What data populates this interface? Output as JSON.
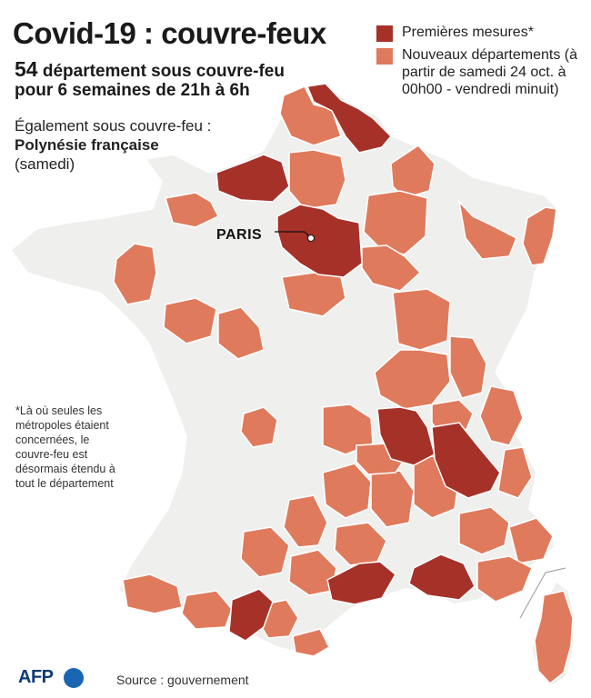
{
  "header": {
    "title": "Covid-19 : couvre-feux",
    "subtitle_number": "54",
    "subtitle_line1": " département sous couvre-feu",
    "subtitle_line2": "pour 6 semaines de 21h à 6h"
  },
  "also": {
    "line1": "Également sous couvre-feu :",
    "place": "Polynésie française",
    "when": "(samedi)"
  },
  "legend": {
    "items": [
      {
        "label": "Premières mesures*",
        "color": "#a63129"
      },
      {
        "label": "Nouveaux départements (à partir de samedi 24 oct. à 00h00 - vendredi minuit)",
        "color": "#e07a5c"
      }
    ]
  },
  "map": {
    "paris_label": "PARIS",
    "colors": {
      "base": "#efefed",
      "new": "#e07a5c",
      "first": "#a63129",
      "border": "#ffffff"
    }
  },
  "footnote": "*Là où seules les métropoles étaient concernées, le couvre-feu est désormais étendu à tout le département",
  "source": "Source : gouvernement",
  "logo": "AFP"
}
